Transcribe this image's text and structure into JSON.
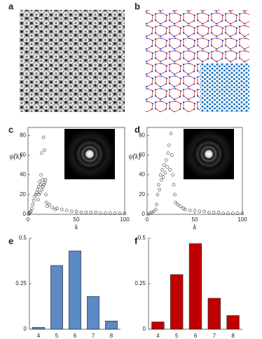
{
  "images": [
    {
      "panel": "a"
    },
    {
      "panel": "b"
    }
  ],
  "chart_data": [
    {
      "type": "scatter",
      "panel": "c",
      "x_label": "k",
      "y_label": "ψ̃(k)",
      "x": [
        0.5,
        1,
        2,
        3,
        4,
        5,
        6,
        7,
        8,
        9,
        10,
        10.5,
        11,
        11.5,
        12,
        12.5,
        13,
        13.5,
        14,
        14.5,
        15,
        15.5,
        16,
        16.5,
        17,
        17.5,
        18,
        18.5,
        19,
        20,
        22,
        25,
        28,
        30,
        35,
        40,
        45,
        50,
        55,
        60,
        65,
        70,
        75,
        80,
        85,
        90,
        95,
        100
      ],
      "y": [
        0,
        1,
        2,
        3,
        6,
        10,
        14,
        18,
        20,
        22,
        25,
        15,
        28,
        20,
        33,
        22,
        30,
        40,
        62,
        25,
        35,
        28,
        78,
        30,
        65,
        32,
        35,
        20,
        12,
        8,
        10,
        7,
        5,
        6,
        5,
        4,
        3,
        3,
        2,
        2,
        2,
        2,
        1,
        1,
        1,
        1,
        1,
        1
      ],
      "xlim": [
        0,
        100
      ],
      "xticks": [
        0,
        50,
        100
      ],
      "ylim": [
        0,
        88
      ],
      "yticks": [
        0,
        20,
        40,
        60,
        80
      ]
    },
    {
      "type": "scatter",
      "panel": "d",
      "x_label": "k",
      "y_label": "ψ̃(k)",
      "x": [
        1,
        3,
        5,
        7,
        9,
        10,
        11,
        12,
        13,
        14,
        15,
        16,
        17,
        18,
        19,
        20,
        21,
        22,
        23,
        24,
        25,
        26,
        27,
        28,
        29,
        30,
        32,
        35,
        38,
        40,
        45,
        50,
        55,
        60,
        65,
        70,
        75,
        80,
        85,
        90,
        95,
        100
      ],
      "y": [
        0,
        1,
        2,
        3,
        5,
        10,
        20,
        30,
        25,
        40,
        35,
        45,
        38,
        50,
        42,
        55,
        48,
        62,
        70,
        45,
        82,
        60,
        40,
        30,
        20,
        12,
        10,
        8,
        6,
        5,
        4,
        4,
        3,
        3,
        2,
        2,
        2,
        1,
        1,
        1,
        1,
        1
      ],
      "xlim": [
        0,
        100
      ],
      "xticks": [
        0,
        50,
        100
      ],
      "ylim": [
        0,
        88
      ],
      "yticks": [
        0,
        20,
        40,
        60,
        80
      ]
    },
    {
      "type": "bar",
      "panel": "e",
      "categories": [
        "4",
        "5",
        "6",
        "7",
        "8"
      ],
      "values": [
        0.01,
        0.35,
        0.43,
        0.18,
        0.045
      ],
      "color": "#5b8ac6",
      "ylim": [
        0,
        0.5
      ],
      "yticks": [
        0,
        0.25,
        0.5
      ]
    },
    {
      "type": "bar",
      "panel": "f",
      "categories": [
        "4",
        "5",
        "6",
        "7",
        "8"
      ],
      "values": [
        0.04,
        0.3,
        0.47,
        0.17,
        0.075
      ],
      "color": "#c00000",
      "ylim": [
        0,
        0.5
      ],
      "yticks": [
        0,
        0.25,
        0.5
      ]
    }
  ]
}
